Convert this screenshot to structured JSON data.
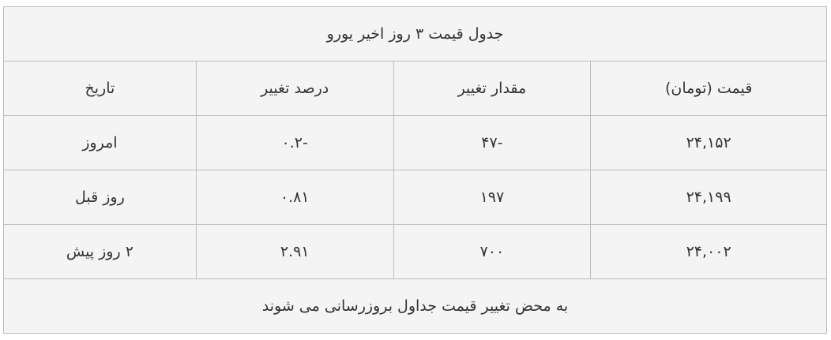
{
  "title": "جدول قیمت ۳ روز اخیر یورو",
  "headers": [
    "قیمت (تومان)",
    "مقدار تغییر",
    "درصد تغییر",
    "تاریخ"
  ],
  "rows": [
    {
      "price": "۲۴,۱۵۲",
      "change": "۴۷-",
      "percent": "۰.۲-",
      "date": "امروز"
    },
    {
      "price": "۲۴,۱۹۹",
      "change": "۱۹۷",
      "percent": "۰.۸۱",
      "date": "روز قبل"
    },
    {
      "price": "۲۴,۰۰۲",
      "change": "۷۰۰",
      "percent": "۲.۹۱",
      "date": "۲ روز پیش"
    }
  ],
  "footer": "به محض تغییر قیمت جداول بروزرسانی می شوند"
}
